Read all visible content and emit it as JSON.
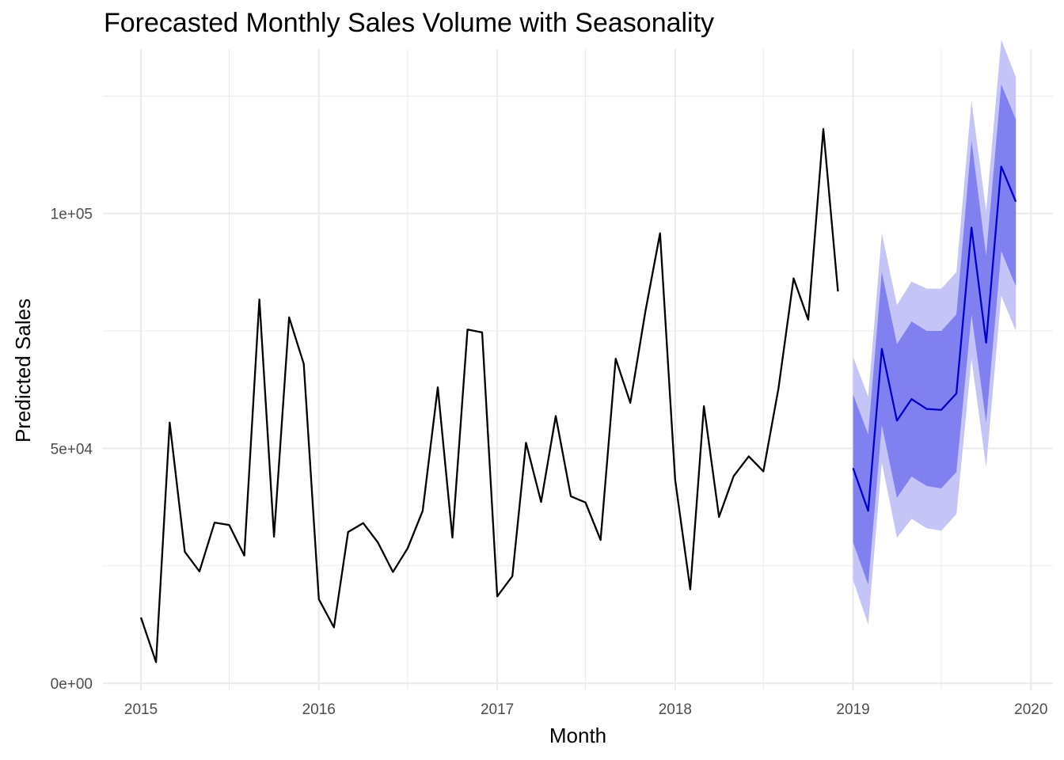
{
  "chart_data": {
    "type": "line",
    "title": "Forecasted Monthly Sales Volume with Seasonality",
    "xlabel": "Month",
    "ylabel": "Predicted Sales",
    "xlim": [
      "2014-10-15",
      "2020-02-15"
    ],
    "ylim": [
      -1500,
      135000
    ],
    "x_ticks": [
      {
        "date": "2015-01-01",
        "label": "2015"
      },
      {
        "date": "2016-01-01",
        "label": "2016"
      },
      {
        "date": "2017-01-01",
        "label": "2017"
      },
      {
        "date": "2018-01-01",
        "label": "2018"
      },
      {
        "date": "2019-01-01",
        "label": "2019"
      },
      {
        "date": "2020-01-01",
        "label": "2020"
      }
    ],
    "x_minor_ticks": [
      "2015-07-01",
      "2016-07-01",
      "2017-07-01",
      "2018-07-01",
      "2019-07-01"
    ],
    "y_ticks": [
      {
        "value": 0,
        "label": "0e+00"
      },
      {
        "value": 50000,
        "label": "5e+04"
      },
      {
        "value": 100000,
        "label": "1e+05"
      }
    ],
    "y_minor_ticks": [
      25000,
      75000,
      125000
    ],
    "grid": true,
    "series": [
      {
        "color": "#000000",
        "x": [
          "2015-01",
          "2015-02",
          "2015-03",
          "2015-04",
          "2015-05",
          "2015-06",
          "2015-07",
          "2015-08",
          "2015-09",
          "2015-10",
          "2015-11",
          "2015-12",
          "2016-01",
          "2016-02",
          "2016-03",
          "2016-04",
          "2016-05",
          "2016-06",
          "2016-07",
          "2016-08",
          "2016-09",
          "2016-10",
          "2016-11",
          "2016-12",
          "2017-01",
          "2017-02",
          "2017-03",
          "2017-04",
          "2017-05",
          "2017-06",
          "2017-07",
          "2017-08",
          "2017-09",
          "2017-10",
          "2017-11",
          "2017-12",
          "2018-01",
          "2018-02",
          "2018-03",
          "2018-04",
          "2018-05",
          "2018-06",
          "2018-07",
          "2018-08",
          "2018-09",
          "2018-10",
          "2018-11",
          "2018-12"
        ],
        "values": [
          14000,
          4500,
          55500,
          28000,
          23800,
          34200,
          33700,
          27200,
          81700,
          31200,
          77900,
          68000,
          17900,
          11900,
          32200,
          34100,
          30000,
          23700,
          28700,
          36700,
          63000,
          31000,
          75300,
          74700,
          18500,
          22800,
          51200,
          38600,
          56900,
          39800,
          38500,
          30500,
          69100,
          59700,
          79200,
          95800,
          43300,
          20000,
          59000,
          35400,
          44100,
          48300,
          45100,
          62800,
          86200,
          77400,
          118000,
          83400
        ]
      },
      {
        "color": "#0000cd",
        "x": [
          "2019-01",
          "2019-02",
          "2019-03",
          "2019-04",
          "2019-05",
          "2019-06",
          "2019-07",
          "2019-08",
          "2019-09",
          "2019-10",
          "2019-11",
          "2019-12"
        ],
        "values": [
          45800,
          36700,
          71200,
          55900,
          60500,
          58400,
          58200,
          61700,
          97000,
          72500,
          110000,
          102500
        ],
        "band_80": {
          "color": "#8080f0",
          "lower": [
            30000,
            21000,
            55000,
            39500,
            44000,
            42000,
            41500,
            45000,
            78500,
            55500,
            92000,
            84500
          ],
          "upper": [
            61500,
            53000,
            87500,
            72200,
            77000,
            75000,
            75000,
            78500,
            115500,
            91000,
            127500,
            120000
          ]
        },
        "band_95": {
          "color": "#c4c4f6",
          "lower": [
            22000,
            12500,
            47000,
            31000,
            35000,
            33000,
            32500,
            36000,
            69000,
            46000,
            82500,
            75000
          ],
          "upper": [
            69500,
            61000,
            95800,
            80500,
            85500,
            84000,
            84000,
            87500,
            124000,
            100500,
            137000,
            129000
          ]
        }
      }
    ]
  }
}
